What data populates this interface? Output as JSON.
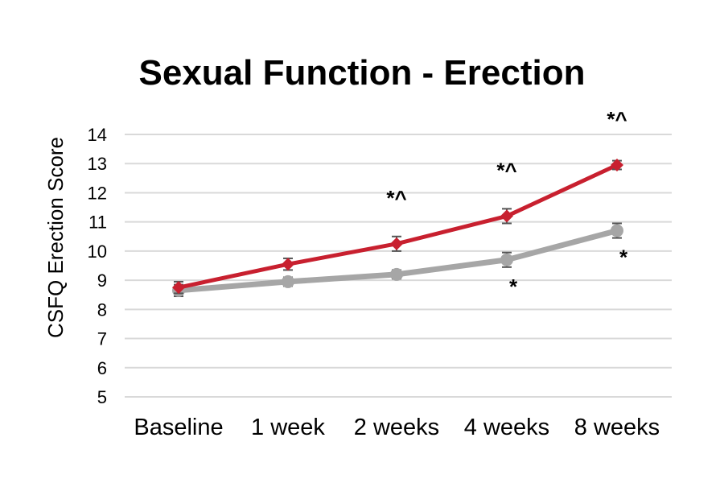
{
  "chart_data": {
    "type": "line",
    "title": "Sexual Function - Erection",
    "xlabel": "",
    "ylabel": "CSFQ Erection Score",
    "categories": [
      "Baseline",
      "1 week",
      "2 weeks",
      "4 weeks",
      "8 weeks"
    ],
    "ylim": [
      5,
      14
    ],
    "yticks": [
      5,
      6,
      7,
      8,
      9,
      10,
      11,
      12,
      13,
      14
    ],
    "grid": true,
    "legend": "none",
    "series": [
      {
        "color": "#c8202f",
        "marker": "diamond",
        "values": [
          8.75,
          9.55,
          10.25,
          11.2,
          12.95
        ],
        "error": [
          0.2,
          0.2,
          0.25,
          0.25,
          0.15
        ]
      },
      {
        "color": "#a6a6a6",
        "marker": "circle",
        "values": [
          8.65,
          8.95,
          9.2,
          9.7,
          10.7
        ],
        "error": [
          0.2,
          0.15,
          0.15,
          0.25,
          0.25
        ]
      }
    ],
    "annotations": [
      {
        "category": "2 weeks",
        "text": "*^",
        "position": "above"
      },
      {
        "category": "4 weeks",
        "text": "*^",
        "position": "above"
      },
      {
        "category": "8 weeks",
        "text": "*^",
        "position": "above"
      },
      {
        "category": "4 weeks",
        "text": "*",
        "position": "below"
      },
      {
        "category": "8 weeks",
        "text": "*",
        "position": "below"
      }
    ]
  }
}
